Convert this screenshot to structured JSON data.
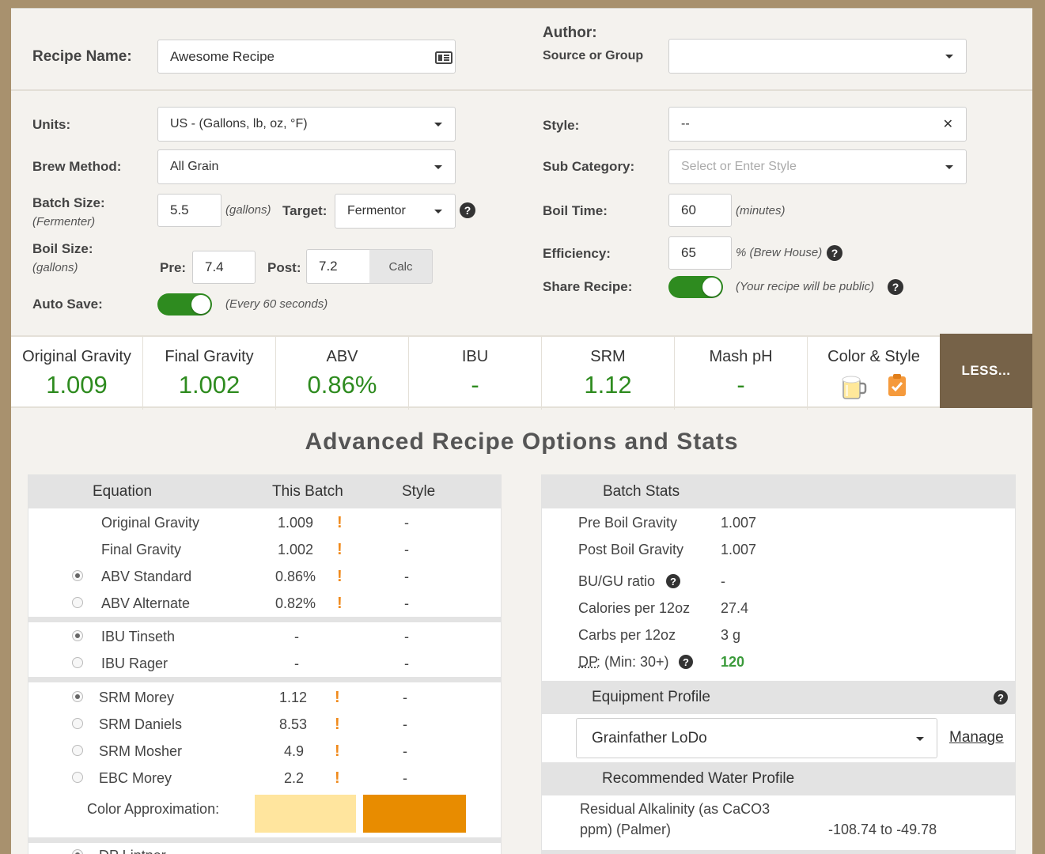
{
  "header": {
    "recipe_name_label": "Recipe Name:",
    "recipe_name_value": "Awesome Recipe",
    "author_label": "Author:",
    "author_sub": "Source or Group",
    "author_value": ""
  },
  "form": {
    "units_label": "Units:",
    "units_value": "US - (Gallons, lb, oz, °F)",
    "brew_method_label": "Brew Method:",
    "brew_method_value": "All Grain",
    "batch_size_label": "Batch Size:",
    "batch_size_sub": "(Fermenter)",
    "batch_size_value": "5.5",
    "batch_size_unit": "(gallons)",
    "target_label": "Target:",
    "target_value": "Fermentor",
    "boil_size_label": "Boil Size:",
    "boil_size_sub": "(gallons)",
    "pre_label": "Pre:",
    "pre_value": "7.4",
    "post_label": "Post:",
    "post_value": "7.2",
    "calc_label": "Calc",
    "auto_save_label": "Auto Save:",
    "auto_save_note": "(Every 60 seconds)",
    "style_label": "Style:",
    "style_value": "--",
    "sub_category_label": "Sub Category:",
    "sub_category_placeholder": "Select or Enter Style",
    "boil_time_label": "Boil Time:",
    "boil_time_value": "60",
    "boil_time_unit": "(minutes)",
    "efficiency_label": "Efficiency:",
    "efficiency_value": "65",
    "efficiency_unit": "% (Brew House)",
    "share_label": "Share Recipe:",
    "share_note": "(Your recipe will be public)"
  },
  "stats": [
    {
      "title": "Original Gravity",
      "value": "1.009"
    },
    {
      "title": "Final Gravity",
      "value": "1.002"
    },
    {
      "title": "ABV",
      "value": "0.86%"
    },
    {
      "title": "IBU",
      "value": "-"
    },
    {
      "title": "SRM",
      "value": "1.12"
    },
    {
      "title": "Mash pH",
      "value": "-"
    }
  ],
  "color_style_title": "Color & Style",
  "less_label": "LESS...",
  "section_title": "Advanced Recipe Options and Stats",
  "equation_table": {
    "headers": {
      "equation": "Equation",
      "batch": "This Batch",
      "style": "Style"
    },
    "rows": [
      {
        "name": "Original Gravity",
        "batch": "1.009",
        "style": "-"
      },
      {
        "name": "Final Gravity",
        "batch": "1.002",
        "style": "-"
      },
      {
        "name": "ABV Standard",
        "batch": "0.86%",
        "style": "-"
      },
      {
        "name": "ABV Alternate",
        "batch": "0.82%",
        "style": "-"
      },
      {
        "name": "IBU Tinseth",
        "batch": "-",
        "style": "-"
      },
      {
        "name": "IBU Rager",
        "batch": "-",
        "style": "-"
      },
      {
        "name": "SRM Morey",
        "batch": "1.12",
        "style": "-"
      },
      {
        "name": "SRM Daniels",
        "batch": "8.53",
        "style": "-"
      },
      {
        "name": "SRM Mosher",
        "batch": "4.9",
        "style": "-"
      },
      {
        "name": "EBC Morey",
        "batch": "2.2",
        "style": "-"
      }
    ],
    "warn_mark": "!",
    "color_approx_label": "Color Approximation:",
    "color_swatches": [
      "#ffe59e",
      "#e88c00"
    ],
    "partial_row": "DP Lintner"
  },
  "batch_stats": {
    "header": "Batch Stats",
    "rows": [
      {
        "name": "Pre Boil Gravity",
        "value": "1.007"
      },
      {
        "name": "Post Boil Gravity",
        "value": "1.007"
      },
      {
        "name": "BU/GU ratio",
        "value": "-"
      },
      {
        "name": "Calories per 12oz",
        "value": "27.4"
      },
      {
        "name": "Carbs per 12oz",
        "value": "3 g"
      },
      {
        "name_prefix": "DP",
        "name": ": (Min: 30+)",
        "value": "120"
      }
    ],
    "equipment_header": "Equipment Profile",
    "equipment_value": "Grainfather LoDo",
    "manage_label": "Manage",
    "water_header": "Recommended Water Profile",
    "residual_label_1": "Residual Alkalinity (as CaCO3",
    "residual_label_2": "ppm) (Palmer)",
    "residual_value": "-108.74 to -49.78"
  }
}
